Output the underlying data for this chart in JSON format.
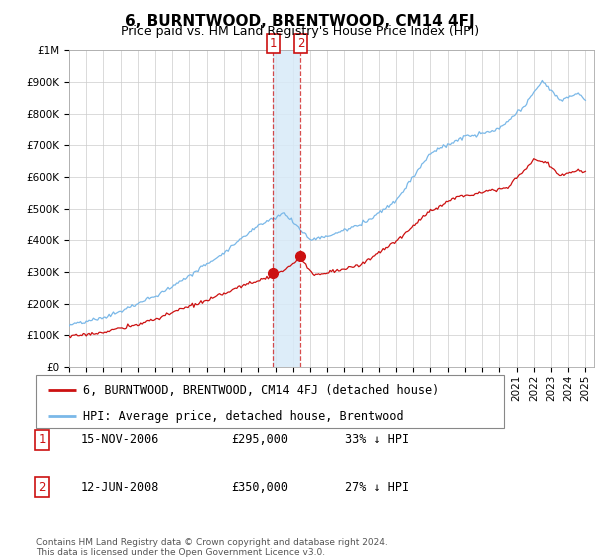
{
  "title": "6, BURNTWOOD, BRENTWOOD, CM14 4FJ",
  "subtitle": "Price paid vs. HM Land Registry's House Price Index (HPI)",
  "background_color": "#ffffff",
  "plot_bg_color": "#ffffff",
  "grid_color": "#cccccc",
  "ylim": [
    0,
    1000000
  ],
  "yticks": [
    0,
    100000,
    200000,
    300000,
    400000,
    500000,
    600000,
    700000,
    800000,
    900000,
    1000000
  ],
  "ytick_labels": [
    "£0",
    "£100K",
    "£200K",
    "£300K",
    "£400K",
    "£500K",
    "£600K",
    "£700K",
    "£800K",
    "£900K",
    "£1M"
  ],
  "xlim_start": 1995.0,
  "xlim_end": 2025.5,
  "hpi_color": "#7ab8e8",
  "price_color": "#cc1111",
  "shade_color": "#d8eaf8",
  "sale1_date_num": 2006.877,
  "sale1_price": 295000,
  "sale2_date_num": 2008.443,
  "sale2_price": 350000,
  "legend_label_red": "6, BURNTWOOD, BRENTWOOD, CM14 4FJ (detached house)",
  "legend_label_blue": "HPI: Average price, detached house, Brentwood",
  "table_rows": [
    {
      "num": "1",
      "date": "15-NOV-2006",
      "price": "£295,000",
      "pct": "33% ↓ HPI"
    },
    {
      "num": "2",
      "date": "12-JUN-2008",
      "price": "£350,000",
      "pct": "27% ↓ HPI"
    }
  ],
  "footnote": "Contains HM Land Registry data © Crown copyright and database right 2024.\nThis data is licensed under the Open Government Licence v3.0.",
  "title_fontsize": 11,
  "subtitle_fontsize": 9,
  "tick_fontsize": 7.5,
  "legend_fontsize": 8.5
}
